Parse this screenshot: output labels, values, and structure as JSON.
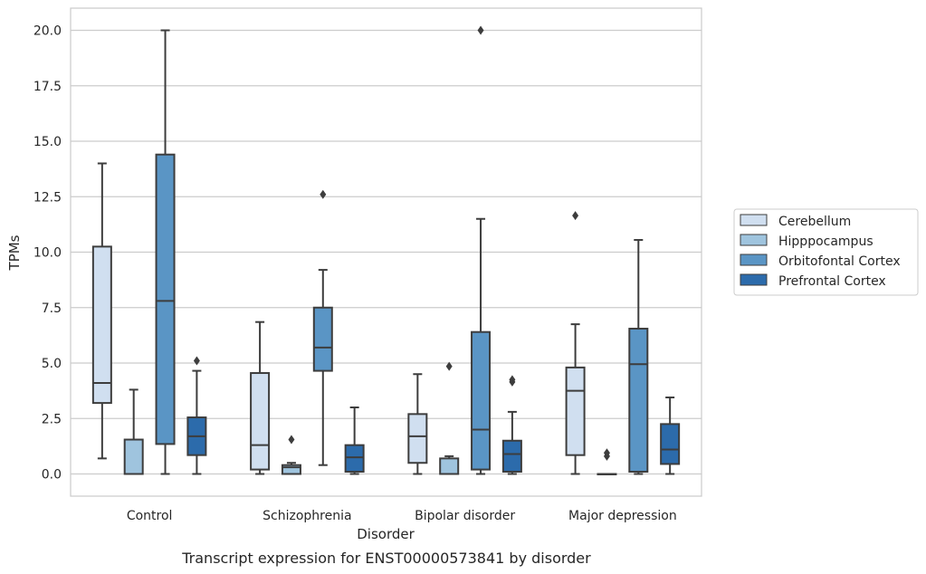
{
  "chart_data": {
    "type": "box",
    "categories": [
      "Control",
      "Schizophrenia",
      "Bipolar disorder",
      "Major depression"
    ],
    "xlabel": "Disorder",
    "ylabel": "TPMs",
    "caption": "Transcript expression for ENST00000573841 by disorder",
    "ylim": [
      -1.0,
      21.0
    ],
    "yticks": [
      "0.0",
      "2.5",
      "5.0",
      "7.5",
      "10.0",
      "12.5",
      "15.0",
      "17.5",
      "20.0"
    ],
    "grid": true,
    "legend_placement": "right",
    "series": [
      {
        "name": "Cerebellum",
        "color": "#d0dff0",
        "boxes": [
          {
            "whisker_low": 0.7,
            "q1": 3.2,
            "median": 4.1,
            "q3": 10.25,
            "whisker_high": 14.0,
            "outliers": []
          },
          {
            "whisker_low": 0.0,
            "q1": 0.2,
            "median": 1.3,
            "q3": 4.55,
            "whisker_high": 6.85,
            "outliers": []
          },
          {
            "whisker_low": 0.0,
            "q1": 0.5,
            "median": 1.7,
            "q3": 2.7,
            "whisker_high": 4.5,
            "outliers": []
          },
          {
            "whisker_low": 0.0,
            "q1": 0.85,
            "median": 3.75,
            "q3": 4.8,
            "whisker_high": 6.75,
            "outliers": [
              11.65
            ]
          }
        ]
      },
      {
        "name": "Hipppocampus",
        "color": "#9fc4de",
        "boxes": [
          {
            "whisker_low": 0.0,
            "q1": 0.0,
            "median": 0.0,
            "q3": 1.55,
            "whisker_high": 3.8,
            "outliers": []
          },
          {
            "whisker_low": 0.0,
            "q1": 0.0,
            "median": 0.3,
            "q3": 0.4,
            "whisker_high": 0.5,
            "outliers": [
              1.55
            ]
          },
          {
            "whisker_low": 0.0,
            "q1": 0.0,
            "median": 0.0,
            "q3": 0.7,
            "whisker_high": 0.8,
            "outliers": [
              4.85
            ]
          },
          {
            "whisker_low": 0.0,
            "q1": 0.0,
            "median": 0.0,
            "q3": 0.0,
            "whisker_high": 0.0,
            "outliers": [
              0.8,
              0.95
            ]
          }
        ]
      },
      {
        "name": "Orbitofontal Cortex",
        "color": "#5a95c5",
        "boxes": [
          {
            "whisker_low": 0.0,
            "q1": 1.35,
            "median": 7.8,
            "q3": 14.4,
            "whisker_high": 20.0,
            "outliers": []
          },
          {
            "whisker_low": 0.4,
            "q1": 4.65,
            "median": 5.7,
            "q3": 7.5,
            "whisker_high": 9.2,
            "outliers": [
              12.6
            ]
          },
          {
            "whisker_low": 0.0,
            "q1": 0.2,
            "median": 2.0,
            "q3": 6.4,
            "whisker_high": 11.5,
            "outliers": [
              20.0
            ]
          },
          {
            "whisker_low": 0.0,
            "q1": 0.1,
            "median": 4.95,
            "q3": 6.55,
            "whisker_high": 10.55,
            "outliers": []
          }
        ]
      },
      {
        "name": "Prefrontal Cortex",
        "color": "#2c6bab",
        "boxes": [
          {
            "whisker_low": 0.0,
            "q1": 0.85,
            "median": 1.7,
            "q3": 2.55,
            "whisker_high": 4.65,
            "outliers": [
              5.1
            ]
          },
          {
            "whisker_low": 0.0,
            "q1": 0.1,
            "median": 0.75,
            "q3": 1.3,
            "whisker_high": 3.0,
            "outliers": []
          },
          {
            "whisker_low": 0.0,
            "q1": 0.1,
            "median": 0.9,
            "q3": 1.5,
            "whisker_high": 2.8,
            "outliers": [
              4.15,
              4.25
            ]
          },
          {
            "whisker_low": 0.0,
            "q1": 0.45,
            "median": 1.1,
            "q3": 2.25,
            "whisker_high": 3.45,
            "outliers": []
          }
        ]
      }
    ]
  }
}
